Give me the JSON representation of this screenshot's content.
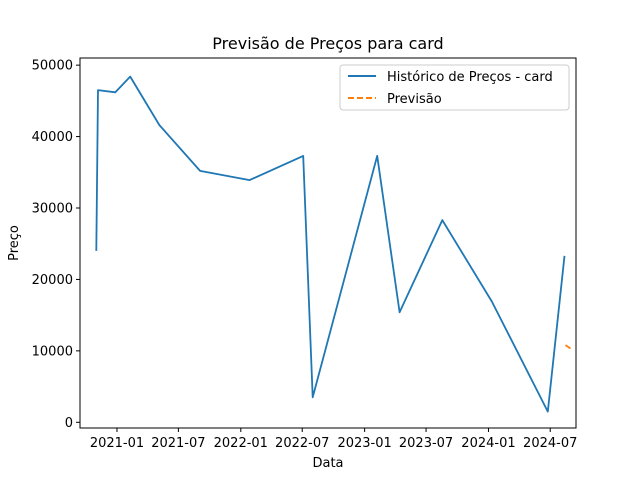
{
  "chart_data": {
    "type": "line",
    "title": "Previsão de Preços para card",
    "xlabel": "Data",
    "ylabel": "Preço",
    "x_ticks": [
      "2021-01",
      "2021-07",
      "2022-01",
      "2022-07",
      "2023-01",
      "2023-07",
      "2024-01",
      "2024-07"
    ],
    "y_ticks": [
      0,
      10000,
      20000,
      30000,
      40000,
      50000
    ],
    "xlim": [
      "2020-09-14",
      "2024-09-15"
    ],
    "ylim": [
      -800,
      51000
    ],
    "grid": false,
    "legend_position": "top-right",
    "series": [
      {
        "name": "Histórico de Preços - card",
        "color": "#1f77b4",
        "style": "solid",
        "points": [
          {
            "x": "2020-11-01",
            "y": 24000
          },
          {
            "x": "2020-11-06",
            "y": 46500
          },
          {
            "x": "2020-12-27",
            "y": 46200
          },
          {
            "x": "2021-02-09",
            "y": 48400
          },
          {
            "x": "2021-05-06",
            "y": 41600
          },
          {
            "x": "2021-09-03",
            "y": 35200
          },
          {
            "x": "2022-01-27",
            "y": 33900
          },
          {
            "x": "2022-07-04",
            "y": 37300
          },
          {
            "x": "2022-08-01",
            "y": 3500
          },
          {
            "x": "2023-02-07",
            "y": 37300
          },
          {
            "x": "2023-04-14",
            "y": 15400
          },
          {
            "x": "2023-08-18",
            "y": 28300
          },
          {
            "x": "2024-01-11",
            "y": 16900
          },
          {
            "x": "2024-06-24",
            "y": 1500
          },
          {
            "x": "2024-08-12",
            "y": 23300
          }
        ]
      },
      {
        "name": "Previsão",
        "color": "#ff7f0e",
        "style": "dashed",
        "points": [
          {
            "x": "2024-08-15",
            "y": 10800
          },
          {
            "x": "2024-09-03",
            "y": 10200
          }
        ]
      }
    ]
  }
}
